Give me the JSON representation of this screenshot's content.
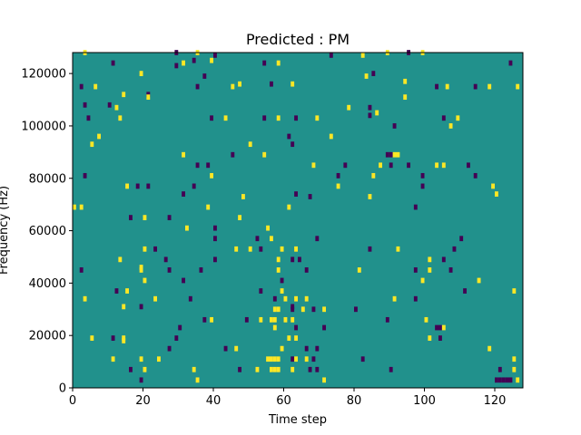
{
  "chart_data": {
    "type": "heatmap",
    "title": "Predicted : PM",
    "xlabel": "Time step",
    "ylabel": "Frequency (Hz)",
    "xlim": [
      0,
      128
    ],
    "ylim": [
      0,
      128000
    ],
    "xticks": [
      0,
      20,
      40,
      60,
      80,
      100,
      120
    ],
    "yticks": [
      0,
      20000,
      40000,
      60000,
      80000,
      100000,
      120000
    ],
    "x_tick_labels": [
      "0",
      "20",
      "40",
      "60",
      "80",
      "100",
      "120"
    ],
    "y_tick_labels": [
      "0",
      "20000",
      "40000",
      "60000",
      "80000",
      "100000",
      "120000"
    ],
    "grid": false,
    "legend": "none",
    "colormap": "viridis",
    "colors": {
      "background": "#21918c",
      "high": "#fde725",
      "low": "#440154"
    },
    "value_range": [
      -1,
      1
    ],
    "background_value": 0,
    "cell_width_steps": 1,
    "cell_height_hz": 1000,
    "cells": [
      {
        "x": 3,
        "y": 127000,
        "v": 1
      },
      {
        "x": 11,
        "y": 123000,
        "v": -1
      },
      {
        "x": 19,
        "y": 119000,
        "v": 1
      },
      {
        "x": 29,
        "y": 127000,
        "v": -1
      },
      {
        "x": 29,
        "y": 122000,
        "v": -1
      },
      {
        "x": 31,
        "y": 123000,
        "v": 1
      },
      {
        "x": 34,
        "y": 124000,
        "v": -1
      },
      {
        "x": 35,
        "y": 127000,
        "v": 1
      },
      {
        "x": 39,
        "y": 124000,
        "v": 1
      },
      {
        "x": 40,
        "y": 126000,
        "v": -1
      },
      {
        "x": 54,
        "y": 123000,
        "v": -1
      },
      {
        "x": 58,
        "y": 123000,
        "v": 1
      },
      {
        "x": 73,
        "y": 126000,
        "v": -1
      },
      {
        "x": 82,
        "y": 126000,
        "v": 1
      },
      {
        "x": 89,
        "y": 127000,
        "v": 1
      },
      {
        "x": 95,
        "y": 127000,
        "v": -1
      },
      {
        "x": 99,
        "y": 127000,
        "v": 1
      },
      {
        "x": 124,
        "y": 123000,
        "v": -1
      },
      {
        "x": 2,
        "y": 114000,
        "v": -1
      },
      {
        "x": 6,
        "y": 114000,
        "v": 1
      },
      {
        "x": 14,
        "y": 111000,
        "v": 1
      },
      {
        "x": 21,
        "y": 111000,
        "v": -1
      },
      {
        "x": 35,
        "y": 114000,
        "v": -1
      },
      {
        "x": 37,
        "y": 118000,
        "v": -1
      },
      {
        "x": 45,
        "y": 114000,
        "v": 1
      },
      {
        "x": 47,
        "y": 115000,
        "v": 1
      },
      {
        "x": 56,
        "y": 115000,
        "v": -1
      },
      {
        "x": 62,
        "y": 115000,
        "v": 1
      },
      {
        "x": 83,
        "y": 118000,
        "v": 1
      },
      {
        "x": 85,
        "y": 119000,
        "v": -1
      },
      {
        "x": 94,
        "y": 116000,
        "v": 1
      },
      {
        "x": 103,
        "y": 114000,
        "v": -1
      },
      {
        "x": 106,
        "y": 114000,
        "v": 1
      },
      {
        "x": 114,
        "y": 114000,
        "v": -1
      },
      {
        "x": 118,
        "y": 114000,
        "v": 1
      },
      {
        "x": 126,
        "y": 114000,
        "v": 1
      },
      {
        "x": 21,
        "y": 110000,
        "v": 1
      },
      {
        "x": 94,
        "y": 110000,
        "v": 1
      },
      {
        "x": 3,
        "y": 107000,
        "v": -1
      },
      {
        "x": 10,
        "y": 107000,
        "v": -1
      },
      {
        "x": 12,
        "y": 106000,
        "v": 1
      },
      {
        "x": 4,
        "y": 102000,
        "v": -1
      },
      {
        "x": 13,
        "y": 102000,
        "v": 1
      },
      {
        "x": 39,
        "y": 102000,
        "v": -1
      },
      {
        "x": 43,
        "y": 102000,
        "v": 1
      },
      {
        "x": 54,
        "y": 102000,
        "v": -1
      },
      {
        "x": 58,
        "y": 102000,
        "v": 1
      },
      {
        "x": 63,
        "y": 102000,
        "v": -1
      },
      {
        "x": 69,
        "y": 102000,
        "v": 1
      },
      {
        "x": 78,
        "y": 106000,
        "v": 1
      },
      {
        "x": 84,
        "y": 106000,
        "v": -1
      },
      {
        "x": 84,
        "y": 103000,
        "v": -1
      },
      {
        "x": 86,
        "y": 104000,
        "v": 1
      },
      {
        "x": 105,
        "y": 102000,
        "v": -1
      },
      {
        "x": 109,
        "y": 102000,
        "v": 1
      },
      {
        "x": 91,
        "y": 99000,
        "v": -1
      },
      {
        "x": 107,
        "y": 99000,
        "v": 1
      },
      {
        "x": 7,
        "y": 95000,
        "v": 1
      },
      {
        "x": 61,
        "y": 95000,
        "v": -1
      },
      {
        "x": 73,
        "y": 95000,
        "v": 1
      },
      {
        "x": 5,
        "y": 92000,
        "v": 1
      },
      {
        "x": 50,
        "y": 92000,
        "v": 1
      },
      {
        "x": 62,
        "y": 92000,
        "v": -1
      },
      {
        "x": 31,
        "y": 88000,
        "v": 1
      },
      {
        "x": 45,
        "y": 88000,
        "v": -1
      },
      {
        "x": 54,
        "y": 88000,
        "v": 1
      },
      {
        "x": 89,
        "y": 88000,
        "v": -1
      },
      {
        "x": 90,
        "y": 88000,
        "v": -1
      },
      {
        "x": 91,
        "y": 88000,
        "v": 1
      },
      {
        "x": 92,
        "y": 88000,
        "v": 1
      },
      {
        "x": 35,
        "y": 84000,
        "v": -1
      },
      {
        "x": 38,
        "y": 84000,
        "v": -1
      },
      {
        "x": 68,
        "y": 84000,
        "v": 1
      },
      {
        "x": 77,
        "y": 84000,
        "v": -1
      },
      {
        "x": 87,
        "y": 84000,
        "v": 1
      },
      {
        "x": 90,
        "y": 84000,
        "v": -1
      },
      {
        "x": 95,
        "y": 84000,
        "v": -1
      },
      {
        "x": 103,
        "y": 84000,
        "v": 1
      },
      {
        "x": 105,
        "y": 84000,
        "v": 1
      },
      {
        "x": 112,
        "y": 84000,
        "v": -1
      },
      {
        "x": 3,
        "y": 80000,
        "v": -1
      },
      {
        "x": 39,
        "y": 80000,
        "v": 1
      },
      {
        "x": 75,
        "y": 80000,
        "v": -1
      },
      {
        "x": 85,
        "y": 80000,
        "v": 1
      },
      {
        "x": 99,
        "y": 80000,
        "v": -1
      },
      {
        "x": 114,
        "y": 80000,
        "v": -1
      },
      {
        "x": 15,
        "y": 76000,
        "v": 1
      },
      {
        "x": 18,
        "y": 76000,
        "v": -1
      },
      {
        "x": 21,
        "y": 76000,
        "v": -1
      },
      {
        "x": 34,
        "y": 76000,
        "v": -1
      },
      {
        "x": 75,
        "y": 76000,
        "v": 1
      },
      {
        "x": 99,
        "y": 76000,
        "v": -1
      },
      {
        "x": 119,
        "y": 76000,
        "v": 1
      },
      {
        "x": 31,
        "y": 73000,
        "v": -1
      },
      {
        "x": 48,
        "y": 72000,
        "v": 1
      },
      {
        "x": 63,
        "y": 73000,
        "v": -1
      },
      {
        "x": 67,
        "y": 72000,
        "v": -1
      },
      {
        "x": 84,
        "y": 72000,
        "v": 1
      },
      {
        "x": 120,
        "y": 73000,
        "v": 1
      },
      {
        "x": 0,
        "y": 68000,
        "v": 1
      },
      {
        "x": 2,
        "y": 68000,
        "v": 1
      },
      {
        "x": 38,
        "y": 68000,
        "v": 1
      },
      {
        "x": 61,
        "y": 68000,
        "v": 1
      },
      {
        "x": 97,
        "y": 68000,
        "v": -1
      },
      {
        "x": 16,
        "y": 64000,
        "v": -1
      },
      {
        "x": 20,
        "y": 64000,
        "v": 1
      },
      {
        "x": 27,
        "y": 64000,
        "v": -1
      },
      {
        "x": 47,
        "y": 64000,
        "v": 1
      },
      {
        "x": 32,
        "y": 60000,
        "v": 1
      },
      {
        "x": 40,
        "y": 60000,
        "v": -1
      },
      {
        "x": 55,
        "y": 60000,
        "v": 1
      },
      {
        "x": 40,
        "y": 56000,
        "v": -1
      },
      {
        "x": 52,
        "y": 56000,
        "v": -1
      },
      {
        "x": 56,
        "y": 56000,
        "v": 1
      },
      {
        "x": 69,
        "y": 56000,
        "v": -1
      },
      {
        "x": 110,
        "y": 56000,
        "v": -1
      },
      {
        "x": 20,
        "y": 52000,
        "v": 1
      },
      {
        "x": 23,
        "y": 52000,
        "v": -1
      },
      {
        "x": 46,
        "y": 52000,
        "v": 1
      },
      {
        "x": 50,
        "y": 52000,
        "v": 1
      },
      {
        "x": 53,
        "y": 52000,
        "v": -1
      },
      {
        "x": 59,
        "y": 52000,
        "v": 1
      },
      {
        "x": 63,
        "y": 52000,
        "v": 1
      },
      {
        "x": 84,
        "y": 52000,
        "v": -1
      },
      {
        "x": 92,
        "y": 52000,
        "v": 1
      },
      {
        "x": 108,
        "y": 52000,
        "v": -1
      },
      {
        "x": 13,
        "y": 48000,
        "v": 1
      },
      {
        "x": 26,
        "y": 48000,
        "v": -1
      },
      {
        "x": 40,
        "y": 48000,
        "v": -1
      },
      {
        "x": 58,
        "y": 48000,
        "v": 1
      },
      {
        "x": 62,
        "y": 48000,
        "v": -1
      },
      {
        "x": 64,
        "y": 48000,
        "v": -1
      },
      {
        "x": 101,
        "y": 48000,
        "v": 1
      },
      {
        "x": 105,
        "y": 48000,
        "v": -1
      },
      {
        "x": 2,
        "y": 44000,
        "v": -1
      },
      {
        "x": 19,
        "y": 44000,
        "v": 1
      },
      {
        "x": 19,
        "y": 45000,
        "v": 1
      },
      {
        "x": 27,
        "y": 44000,
        "v": -1
      },
      {
        "x": 36,
        "y": 44000,
        "v": -1
      },
      {
        "x": 58,
        "y": 44000,
        "v": 1
      },
      {
        "x": 66,
        "y": 44000,
        "v": -1
      },
      {
        "x": 81,
        "y": 44000,
        "v": 1
      },
      {
        "x": 97,
        "y": 44000,
        "v": -1
      },
      {
        "x": 101,
        "y": 44000,
        "v": 1
      },
      {
        "x": 107,
        "y": 44000,
        "v": -1
      },
      {
        "x": 20,
        "y": 40000,
        "v": 1
      },
      {
        "x": 31,
        "y": 40000,
        "v": -1
      },
      {
        "x": 59,
        "y": 40000,
        "v": -1
      },
      {
        "x": 99,
        "y": 40000,
        "v": 1
      },
      {
        "x": 115,
        "y": 40000,
        "v": 1
      },
      {
        "x": 12,
        "y": 36000,
        "v": -1
      },
      {
        "x": 15,
        "y": 36000,
        "v": 1
      },
      {
        "x": 53,
        "y": 36000,
        "v": -1
      },
      {
        "x": 59,
        "y": 36000,
        "v": 1
      },
      {
        "x": 111,
        "y": 36000,
        "v": -1
      },
      {
        "x": 125,
        "y": 36000,
        "v": 1
      },
      {
        "x": 3,
        "y": 33000,
        "v": 1
      },
      {
        "x": 23,
        "y": 33000,
        "v": 1
      },
      {
        "x": 33,
        "y": 33000,
        "v": -1
      },
      {
        "x": 57,
        "y": 33000,
        "v": -1
      },
      {
        "x": 60,
        "y": 33000,
        "v": 1
      },
      {
        "x": 63,
        "y": 33000,
        "v": 1
      },
      {
        "x": 66,
        "y": 33000,
        "v": 1
      },
      {
        "x": 91,
        "y": 33000,
        "v": 1
      },
      {
        "x": 97,
        "y": 33000,
        "v": -1
      },
      {
        "x": 14,
        "y": 30000,
        "v": 1
      },
      {
        "x": 19,
        "y": 30000,
        "v": -1
      },
      {
        "x": 57,
        "y": 29000,
        "v": 1
      },
      {
        "x": 58,
        "y": 29000,
        "v": 1
      },
      {
        "x": 62,
        "y": 29000,
        "v": -1
      },
      {
        "x": 62,
        "y": 30000,
        "v": -1
      },
      {
        "x": 65,
        "y": 29000,
        "v": 1
      },
      {
        "x": 68,
        "y": 29000,
        "v": -1
      },
      {
        "x": 71,
        "y": 29000,
        "v": 1
      },
      {
        "x": 80,
        "y": 29000,
        "v": -1
      },
      {
        "x": 37,
        "y": 25000,
        "v": -1
      },
      {
        "x": 39,
        "y": 25000,
        "v": 1
      },
      {
        "x": 49,
        "y": 25000,
        "v": -1
      },
      {
        "x": 53,
        "y": 25000,
        "v": 1
      },
      {
        "x": 56,
        "y": 25000,
        "v": 1
      },
      {
        "x": 57,
        "y": 25000,
        "v": 1
      },
      {
        "x": 60,
        "y": 25000,
        "v": 1
      },
      {
        "x": 62,
        "y": 25000,
        "v": 1
      },
      {
        "x": 89,
        "y": 25000,
        "v": -1
      },
      {
        "x": 100,
        "y": 25000,
        "v": 1
      },
      {
        "x": 30,
        "y": 22000,
        "v": -1
      },
      {
        "x": 57,
        "y": 22000,
        "v": 1
      },
      {
        "x": 63,
        "y": 22000,
        "v": -1
      },
      {
        "x": 71,
        "y": 22000,
        "v": -1
      },
      {
        "x": 103,
        "y": 22000,
        "v": -1
      },
      {
        "x": 104,
        "y": 22000,
        "v": -1
      },
      {
        "x": 105,
        "y": 22000,
        "v": 1
      },
      {
        "x": 5,
        "y": 18000,
        "v": 1
      },
      {
        "x": 11,
        "y": 18000,
        "v": -1
      },
      {
        "x": 14,
        "y": 18000,
        "v": 1
      },
      {
        "x": 14,
        "y": 17000,
        "v": 1
      },
      {
        "x": 29,
        "y": 18000,
        "v": -1
      },
      {
        "x": 61,
        "y": 18000,
        "v": 1
      },
      {
        "x": 63,
        "y": 18000,
        "v": 1
      },
      {
        "x": 101,
        "y": 18000,
        "v": 1
      },
      {
        "x": 104,
        "y": 18000,
        "v": -1
      },
      {
        "x": 27,
        "y": 14000,
        "v": -1
      },
      {
        "x": 43,
        "y": 14000,
        "v": -1
      },
      {
        "x": 46,
        "y": 14000,
        "v": 1
      },
      {
        "x": 59,
        "y": 14000,
        "v": 1
      },
      {
        "x": 66,
        "y": 14000,
        "v": -1
      },
      {
        "x": 69,
        "y": 14000,
        "v": -1
      },
      {
        "x": 118,
        "y": 14000,
        "v": 1
      },
      {
        "x": 11,
        "y": 10000,
        "v": 1
      },
      {
        "x": 19,
        "y": 10000,
        "v": 1
      },
      {
        "x": 24,
        "y": 10000,
        "v": 1
      },
      {
        "x": 55,
        "y": 10000,
        "v": 1
      },
      {
        "x": 56,
        "y": 10000,
        "v": 1
      },
      {
        "x": 57,
        "y": 10000,
        "v": 1
      },
      {
        "x": 58,
        "y": 10000,
        "v": 1
      },
      {
        "x": 62,
        "y": 10000,
        "v": -1
      },
      {
        "x": 63,
        "y": 10000,
        "v": 1
      },
      {
        "x": 66,
        "y": 10000,
        "v": 1
      },
      {
        "x": 68,
        "y": 10000,
        "v": -1
      },
      {
        "x": 82,
        "y": 10000,
        "v": -1
      },
      {
        "x": 125,
        "y": 10000,
        "v": 1
      },
      {
        "x": 16,
        "y": 6000,
        "v": -1
      },
      {
        "x": 20,
        "y": 6000,
        "v": 1
      },
      {
        "x": 34,
        "y": 6000,
        "v": 1
      },
      {
        "x": 47,
        "y": 6000,
        "v": -1
      },
      {
        "x": 52,
        "y": 6000,
        "v": 1
      },
      {
        "x": 56,
        "y": 6000,
        "v": 1
      },
      {
        "x": 57,
        "y": 6000,
        "v": 1
      },
      {
        "x": 58,
        "y": 6000,
        "v": 1
      },
      {
        "x": 62,
        "y": 6000,
        "v": 1
      },
      {
        "x": 67,
        "y": 6000,
        "v": -1
      },
      {
        "x": 69,
        "y": 6000,
        "v": -1
      },
      {
        "x": 90,
        "y": 6000,
        "v": -1
      },
      {
        "x": 121,
        "y": 6000,
        "v": -1
      },
      {
        "x": 125,
        "y": 6000,
        "v": 1
      },
      {
        "x": 19,
        "y": 2000,
        "v": -1
      },
      {
        "x": 35,
        "y": 2000,
        "v": 1
      },
      {
        "x": 71,
        "y": 2000,
        "v": 1
      },
      {
        "x": 120,
        "y": 2000,
        "v": -1
      },
      {
        "x": 121,
        "y": 2000,
        "v": -1
      },
      {
        "x": 122,
        "y": 2000,
        "v": -1
      },
      {
        "x": 123,
        "y": 2000,
        "v": -1
      },
      {
        "x": 124,
        "y": 2000,
        "v": -1
      },
      {
        "x": 126,
        "y": 2000,
        "v": 1
      }
    ]
  }
}
